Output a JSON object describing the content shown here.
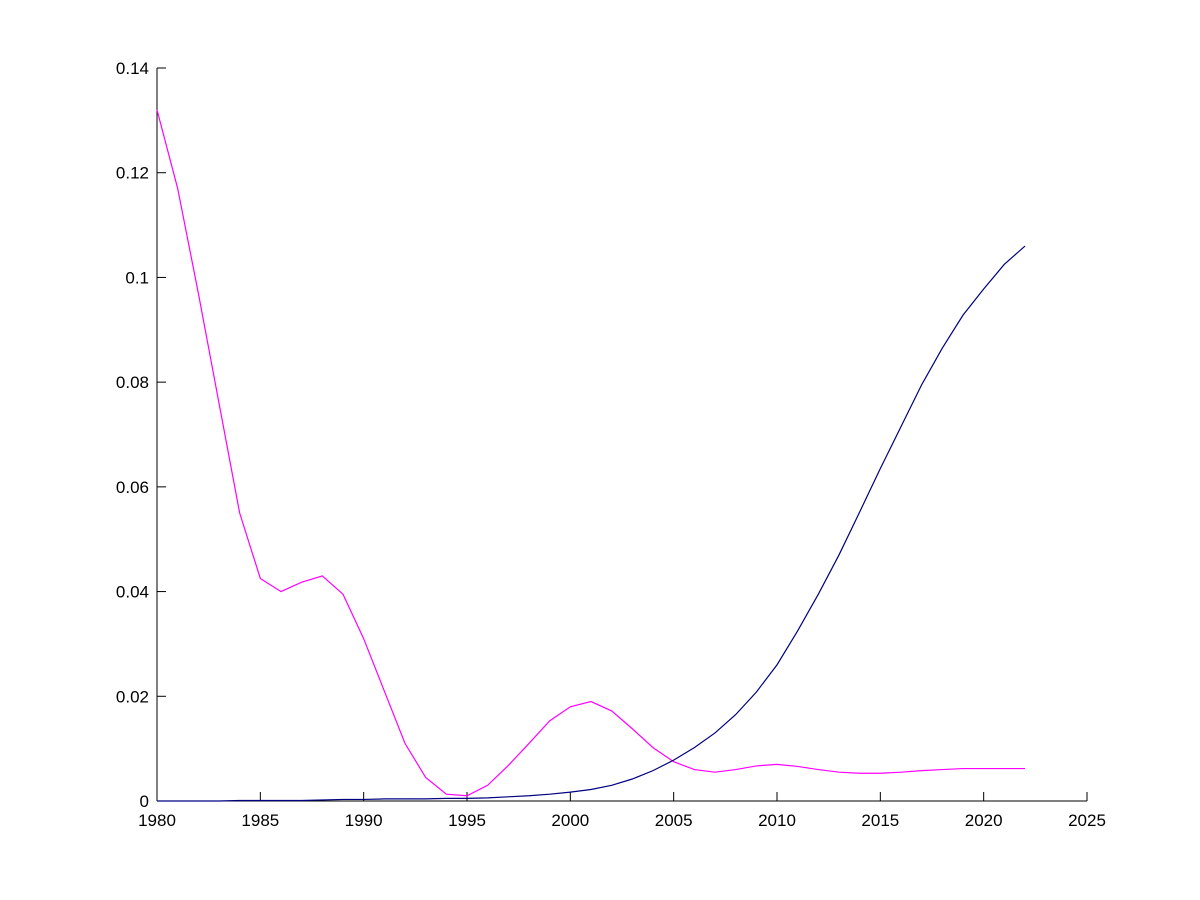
{
  "chart_data": {
    "type": "line",
    "x": [
      1980,
      1981,
      1982,
      1983,
      1984,
      1985,
      1986,
      1987,
      1988,
      1989,
      1990,
      1991,
      1992,
      1993,
      1994,
      1995,
      1996,
      1997,
      1998,
      1999,
      2000,
      2001,
      2002,
      2003,
      2004,
      2005,
      2006,
      2007,
      2008,
      2009,
      2010,
      2011,
      2012,
      2013,
      2014,
      2015,
      2016,
      2017,
      2018,
      2019,
      2020,
      2021,
      2022
    ],
    "series": [
      {
        "color": "#ff00ff",
        "values": [
          0.132,
          0.117,
          0.097,
          0.076,
          0.055,
          0.0425,
          0.04,
          0.0418,
          0.043,
          0.0395,
          0.031,
          0.021,
          0.011,
          0.0045,
          0.0013,
          0.001,
          0.003,
          0.0068,
          0.011,
          0.0153,
          0.018,
          0.019,
          0.0172,
          0.0138,
          0.0102,
          0.0075,
          0.006,
          0.0055,
          0.006,
          0.0067,
          0.007,
          0.0066,
          0.006,
          0.0055,
          0.0053,
          0.0053,
          0.0055,
          0.0058,
          0.006,
          0.0062,
          0.0062,
          0.0062,
          0.0062
        ]
      },
      {
        "color": "#000080",
        "values": [
          0,
          0,
          0,
          0,
          0.0001,
          0.0001,
          0.0001,
          0.0001,
          0.0002,
          0.0003,
          0.0003,
          0.0004,
          0.0004,
          0.0004,
          0.0005,
          0.0005,
          0.0006,
          0.0008,
          0.001,
          0.0013,
          0.0017,
          0.0022,
          0.003,
          0.0042,
          0.0058,
          0.0078,
          0.0102,
          0.013,
          0.0165,
          0.0208,
          0.026,
          0.0325,
          0.0395,
          0.047,
          0.0552,
          0.0635,
          0.0715,
          0.0795,
          0.0865,
          0.0928,
          0.0978,
          0.1025,
          0.106
        ]
      }
    ],
    "xlim": [
      1980,
      2025
    ],
    "xticks": [
      1980,
      1985,
      1990,
      1995,
      2000,
      2005,
      2010,
      2015,
      2020,
      2025
    ],
    "ylim": [
      0,
      0.14
    ],
    "yticks": [
      0,
      0.02,
      0.04,
      0.06,
      0.08,
      0.1,
      0.12,
      0.14
    ],
    "grid": false
  }
}
